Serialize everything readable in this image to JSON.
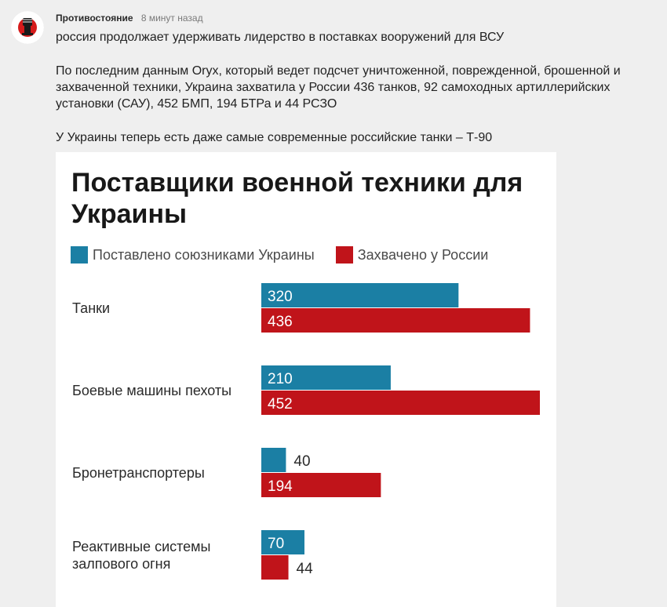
{
  "post": {
    "author": "Противостояние",
    "time": "8 минут назад",
    "paragraphs": [
      "россия продолжает удерживать лидерство в поставках вооружений для ВСУ",
      "По последним данным Oryx, который ведет подсчет уничтоженной, поврежденной, брошенной и захваченной техники, Украина захватила у России 436 танков, 92 самоходных артиллерийских установки (САУ), 452 БМП, 194 БТРа и 44 РСЗО",
      "У Украины теперь есть даже самые современные российские танки – Т-90"
    ]
  },
  "chart_data": {
    "type": "bar",
    "title": "Поставщики военной техники для Украины",
    "categories": [
      "Танки",
      "Боевые машины пехоты",
      "Бронетранспортеры",
      "Реактивные системы залпового огня"
    ],
    "series": [
      {
        "name": "Поставлено союзниками Украины",
        "color": "#1b7fa4",
        "values": [
          320,
          210,
          40,
          70
        ]
      },
      {
        "name": "Захвачено у России",
        "color": "#c0141a",
        "values": [
          436,
          452,
          194,
          44
        ]
      }
    ],
    "value_labels": [
      [
        "320",
        "210",
        "40",
        "70"
      ],
      [
        "436",
        "452",
        "194",
        "44"
      ]
    ],
    "xlim": [
      0,
      452
    ],
    "orientation": "horizontal",
    "legend": "top"
  },
  "icons": {
    "avatar": "fist-avatar-icon"
  }
}
